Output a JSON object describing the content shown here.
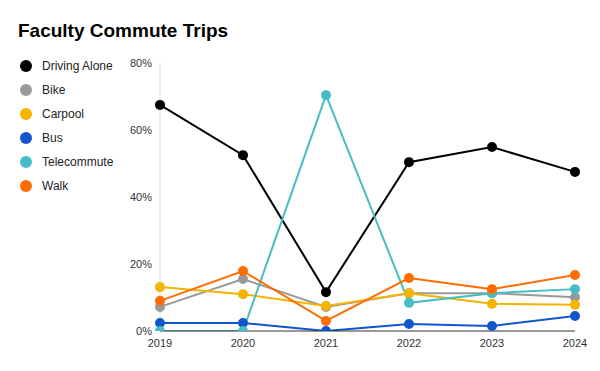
{
  "chart_data": {
    "type": "line",
    "title": "Faculty Commute Trips",
    "categories": [
      "2019",
      "2020",
      "2021",
      "2022",
      "2023",
      "2024"
    ],
    "series": [
      {
        "name": "Driving Alone",
        "color": "#000000",
        "values": [
          67.5,
          52.5,
          11.6,
          50.4,
          54.9,
          47.5
        ]
      },
      {
        "name": "Bike",
        "color": "#999999",
        "values": [
          7.2,
          15.5,
          7.2,
          11.3,
          11.3,
          10.1
        ]
      },
      {
        "name": "Carpool",
        "color": "#f4b400",
        "values": [
          13.1,
          11,
          7.5,
          11.3,
          8.1,
          7.8
        ]
      },
      {
        "name": "Bus",
        "color": "#1155cc",
        "values": [
          2.4,
          2.4,
          0,
          2.1,
          1.5,
          4.5
        ]
      },
      {
        "name": "Telecommute",
        "color": "#46bdc6",
        "values": [
          0,
          0,
          70.4,
          8.4,
          11.3,
          12.5
        ]
      },
      {
        "name": "Walk",
        "color": "#ff6d01",
        "values": [
          9,
          17.9,
          3,
          15.8,
          12.5,
          16.7
        ]
      }
    ],
    "ylim": [
      0,
      80
    ],
    "yticks": [
      {
        "value": 0,
        "label": "0%"
      },
      {
        "value": 20,
        "label": "20%"
      },
      {
        "value": 40,
        "label": "40%"
      },
      {
        "value": 60,
        "label": "60%"
      },
      {
        "value": 80,
        "label": "80%"
      }
    ],
    "grid": false,
    "legend": "left",
    "marker": "circle"
  }
}
